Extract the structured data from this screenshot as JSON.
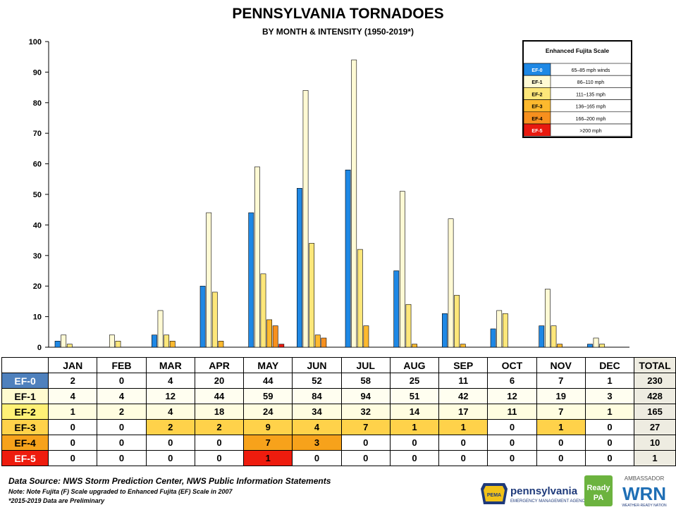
{
  "title": "PENNSYLVANIA TORNADOES",
  "subtitle": "BY MONTH & INTENSITY (1950-2019*)",
  "chart_data": {
    "type": "bar",
    "title": "PENNSYLVANIA TORNADOES",
    "subtitle": "BY MONTH & INTENSITY (1950-2019*)",
    "categories": [
      "JAN",
      "FEB",
      "MAR",
      "APR",
      "MAY",
      "JUN",
      "JUL",
      "AUG",
      "SEP",
      "OCT",
      "NOV",
      "DEC"
    ],
    "ylim": [
      0,
      100
    ],
    "yticks": [
      0,
      10,
      20,
      30,
      40,
      50,
      60,
      70,
      80,
      90,
      100
    ],
    "grid": false,
    "legend_position": "top-right",
    "series": [
      {
        "name": "EF-0",
        "color": "#1e88e5",
        "values": [
          2,
          0,
          4,
          20,
          44,
          52,
          58,
          25,
          11,
          6,
          7,
          1
        ]
      },
      {
        "name": "EF-1",
        "color": "#fffad4",
        "values": [
          4,
          4,
          12,
          44,
          59,
          84,
          94,
          51,
          42,
          12,
          19,
          3
        ]
      },
      {
        "name": "EF-2",
        "color": "#fde77a",
        "values": [
          1,
          2,
          4,
          18,
          24,
          34,
          32,
          14,
          17,
          11,
          7,
          1
        ]
      },
      {
        "name": "EF-3",
        "color": "#fdb92e",
        "values": [
          0,
          0,
          2,
          2,
          9,
          4,
          7,
          1,
          1,
          0,
          1,
          0
        ]
      },
      {
        "name": "EF-4",
        "color": "#f7901e",
        "values": [
          0,
          0,
          0,
          0,
          7,
          3,
          0,
          0,
          0,
          0,
          0,
          0
        ]
      },
      {
        "name": "EF-5",
        "color": "#e8190f",
        "values": [
          0,
          0,
          0,
          0,
          1,
          0,
          0,
          0,
          0,
          0,
          0,
          0
        ]
      }
    ]
  },
  "legend": {
    "title": "Enhanced Fujita Scale",
    "items": [
      {
        "label": "EF-0",
        "desc": "65–85 mph winds"
      },
      {
        "label": "EF-1",
        "desc": "86–110 mph"
      },
      {
        "label": "EF-2",
        "desc": "111–135 mph"
      },
      {
        "label": "EF-3",
        "desc": "136–165 mph"
      },
      {
        "label": "EF-4",
        "desc": "166–200 mph"
      },
      {
        "label": "EF-5",
        "desc": ">200 mph"
      }
    ]
  },
  "table": {
    "total_label": "TOTAL",
    "rows": [
      {
        "label": "EF-0",
        "values": [
          "2",
          "0",
          "4",
          "20",
          "44",
          "52",
          "58",
          "25",
          "11",
          "6",
          "7",
          "1"
        ],
        "total": "230",
        "label_bg": "#4f81bd",
        "label_color": "#ffffff",
        "cell_bg": "#ffffff",
        "highlight": []
      },
      {
        "label": "EF-1",
        "values": [
          "4",
          "4",
          "12",
          "44",
          "59",
          "84",
          "94",
          "51",
          "42",
          "12",
          "19",
          "3"
        ],
        "total": "428",
        "label_bg": "#fffbd0",
        "label_color": "#000000",
        "cell_bg": "#fffef0",
        "highlight": []
      },
      {
        "label": "EF-2",
        "values": [
          "1",
          "2",
          "4",
          "18",
          "24",
          "34",
          "32",
          "14",
          "17",
          "11",
          "7",
          "1"
        ],
        "total": "165",
        "label_bg": "#fff176",
        "label_color": "#000000",
        "cell_bg": "#fffde0",
        "highlight": []
      },
      {
        "label": "EF-3",
        "values": [
          "0",
          "0",
          "2",
          "2",
          "9",
          "4",
          "7",
          "1",
          "1",
          "0",
          "1",
          "0"
        ],
        "total": "27",
        "label_bg": "#ffd24a",
        "label_color": "#000000",
        "cell_bg": "#ffffff",
        "highlight": [
          2,
          3,
          4,
          5,
          6,
          7,
          8,
          10
        ],
        "highlight_bg": "#ffd24a"
      },
      {
        "label": "EF-4",
        "values": [
          "0",
          "0",
          "0",
          "0",
          "7",
          "3",
          "0",
          "0",
          "0",
          "0",
          "0",
          "0"
        ],
        "total": "10",
        "label_bg": "#f7a21b",
        "label_color": "#000000",
        "cell_bg": "#ffffff",
        "highlight": [
          4,
          5
        ],
        "highlight_bg": "#f7a21b"
      },
      {
        "label": "EF-5",
        "values": [
          "0",
          "0",
          "0",
          "0",
          "1",
          "0",
          "0",
          "0",
          "0",
          "0",
          "0",
          "0"
        ],
        "total": "1",
        "label_bg": "#ee1c0e",
        "label_color": "#ffffff",
        "cell_bg": "#ffffff",
        "highlight": [
          4
        ],
        "highlight_bg": "#ee1c0e"
      }
    ]
  },
  "footer": {
    "source": "Data Source: NWS Storm Prediction Center, NWS Public Information Statements",
    "note1": "Note: Note Fujita (F) Scale upgraded to Enhanced Fujita  (EF) Scale in 2007",
    "note2": "*2015-2019 Data are Preliminary"
  },
  "logos": {
    "pa_name": "pennsylvania",
    "pa_sub": "EMERGENCY MANAGEMENT AGENCY",
    "pema": "PEMA",
    "ready_1": "Ready",
    "ready_2": "PA",
    "wrn_top": "AMBASSADOR",
    "wrn_main": "WRN",
    "wrn_sub": "WEATHER-READY NATION"
  }
}
